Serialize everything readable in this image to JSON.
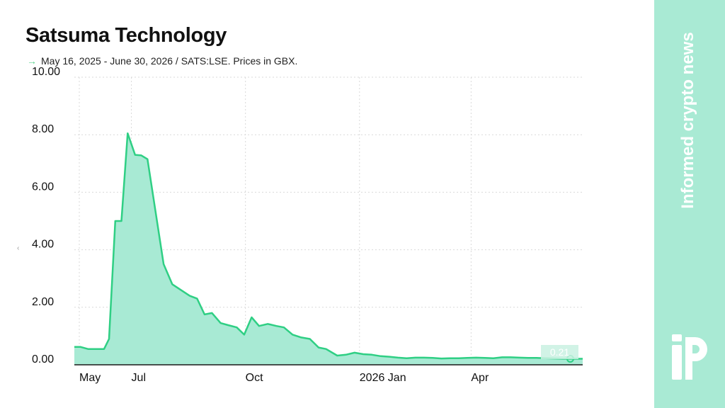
{
  "title": "Satsuma Technology",
  "subtitle": "May 16, 2025 - June 30, 2026 / SATS:LSE. Prices in GBX.",
  "subtitle_arrow": "→",
  "brand": {
    "text": "Informed crypto news",
    "logo_icon": "ip-logo-icon"
  },
  "edge_mark": "‹",
  "colors": {
    "line": "#2fcf84",
    "area": "#a8ead4",
    "panel": "#a9ead4",
    "grid": "#d9d9d9",
    "arrow": "#5cd38f"
  },
  "chart_data": {
    "type": "area",
    "title": "Satsuma Technology",
    "ylim": [
      0,
      10
    ],
    "ytick_values": [
      0,
      2,
      4,
      6,
      8,
      10
    ],
    "ytick_labels": [
      "0.00",
      "2.00",
      "4.00",
      "6.00",
      "8.00",
      "10.00"
    ],
    "xlim": [
      "2025-05-16",
      "2026-06-30"
    ],
    "xticks": [
      {
        "date": "2025-05-20",
        "label": "May"
      },
      {
        "date": "2025-07-01",
        "label": "Jul"
      },
      {
        "date": "2025-10-01",
        "label": "Oct"
      },
      {
        "date": "2026-01-01",
        "label": "2026 Jan"
      },
      {
        "date": "2026-04-01",
        "label": "Apr"
      }
    ],
    "grid": true,
    "last_value_label": "0.21",
    "series": [
      {
        "points": [
          [
            "2025-05-16",
            0.62
          ],
          [
            "2025-05-21",
            0.62
          ],
          [
            "2025-05-27",
            0.55
          ],
          [
            "2025-06-02",
            0.55
          ],
          [
            "2025-06-09",
            0.55
          ],
          [
            "2025-06-13",
            0.9
          ],
          [
            "2025-06-18",
            5.0
          ],
          [
            "2025-06-23",
            5.0
          ],
          [
            "2025-06-28",
            8.05
          ],
          [
            "2025-07-04",
            7.3
          ],
          [
            "2025-07-09",
            7.28
          ],
          [
            "2025-07-14",
            7.15
          ],
          [
            "2025-07-27",
            3.5
          ],
          [
            "2025-08-03",
            2.8
          ],
          [
            "2025-08-10",
            2.6
          ],
          [
            "2025-08-17",
            2.4
          ],
          [
            "2025-08-23",
            2.3
          ],
          [
            "2025-08-29",
            1.75
          ],
          [
            "2025-09-04",
            1.8
          ],
          [
            "2025-09-11",
            1.45
          ],
          [
            "2025-09-17",
            1.38
          ],
          [
            "2025-09-24",
            1.3
          ],
          [
            "2025-09-30",
            1.05
          ],
          [
            "2025-10-06",
            1.65
          ],
          [
            "2025-10-12",
            1.35
          ],
          [
            "2025-10-19",
            1.42
          ],
          [
            "2025-10-26",
            1.35
          ],
          [
            "2025-11-01",
            1.3
          ],
          [
            "2025-11-08",
            1.05
          ],
          [
            "2025-11-15",
            0.95
          ],
          [
            "2025-11-22",
            0.9
          ],
          [
            "2025-11-29",
            0.6
          ],
          [
            "2025-12-05",
            0.55
          ],
          [
            "2025-12-14",
            0.32
          ],
          [
            "2025-12-21",
            0.35
          ],
          [
            "2025-12-28",
            0.42
          ],
          [
            "2026-01-04",
            0.37
          ],
          [
            "2026-01-11",
            0.35
          ],
          [
            "2026-01-18",
            0.3
          ],
          [
            "2026-01-25",
            0.28
          ],
          [
            "2026-02-01",
            0.25
          ],
          [
            "2026-02-08",
            0.23
          ],
          [
            "2026-02-15",
            0.25
          ],
          [
            "2026-02-22",
            0.25
          ],
          [
            "2026-03-01",
            0.24
          ],
          [
            "2026-03-08",
            0.22
          ],
          [
            "2026-03-15",
            0.23
          ],
          [
            "2026-03-22",
            0.23
          ],
          [
            "2026-03-29",
            0.24
          ],
          [
            "2026-04-05",
            0.25
          ],
          [
            "2026-04-12",
            0.24
          ],
          [
            "2026-04-19",
            0.23
          ],
          [
            "2026-04-26",
            0.26
          ],
          [
            "2026-05-03",
            0.26
          ],
          [
            "2026-05-10",
            0.25
          ],
          [
            "2026-05-17",
            0.24
          ],
          [
            "2026-05-24",
            0.24
          ],
          [
            "2026-05-31",
            0.23
          ],
          [
            "2026-06-07",
            0.22
          ],
          [
            "2026-06-14",
            0.21
          ],
          [
            "2026-06-21",
            0.21
          ],
          [
            "2026-06-30",
            0.21
          ]
        ]
      }
    ]
  }
}
